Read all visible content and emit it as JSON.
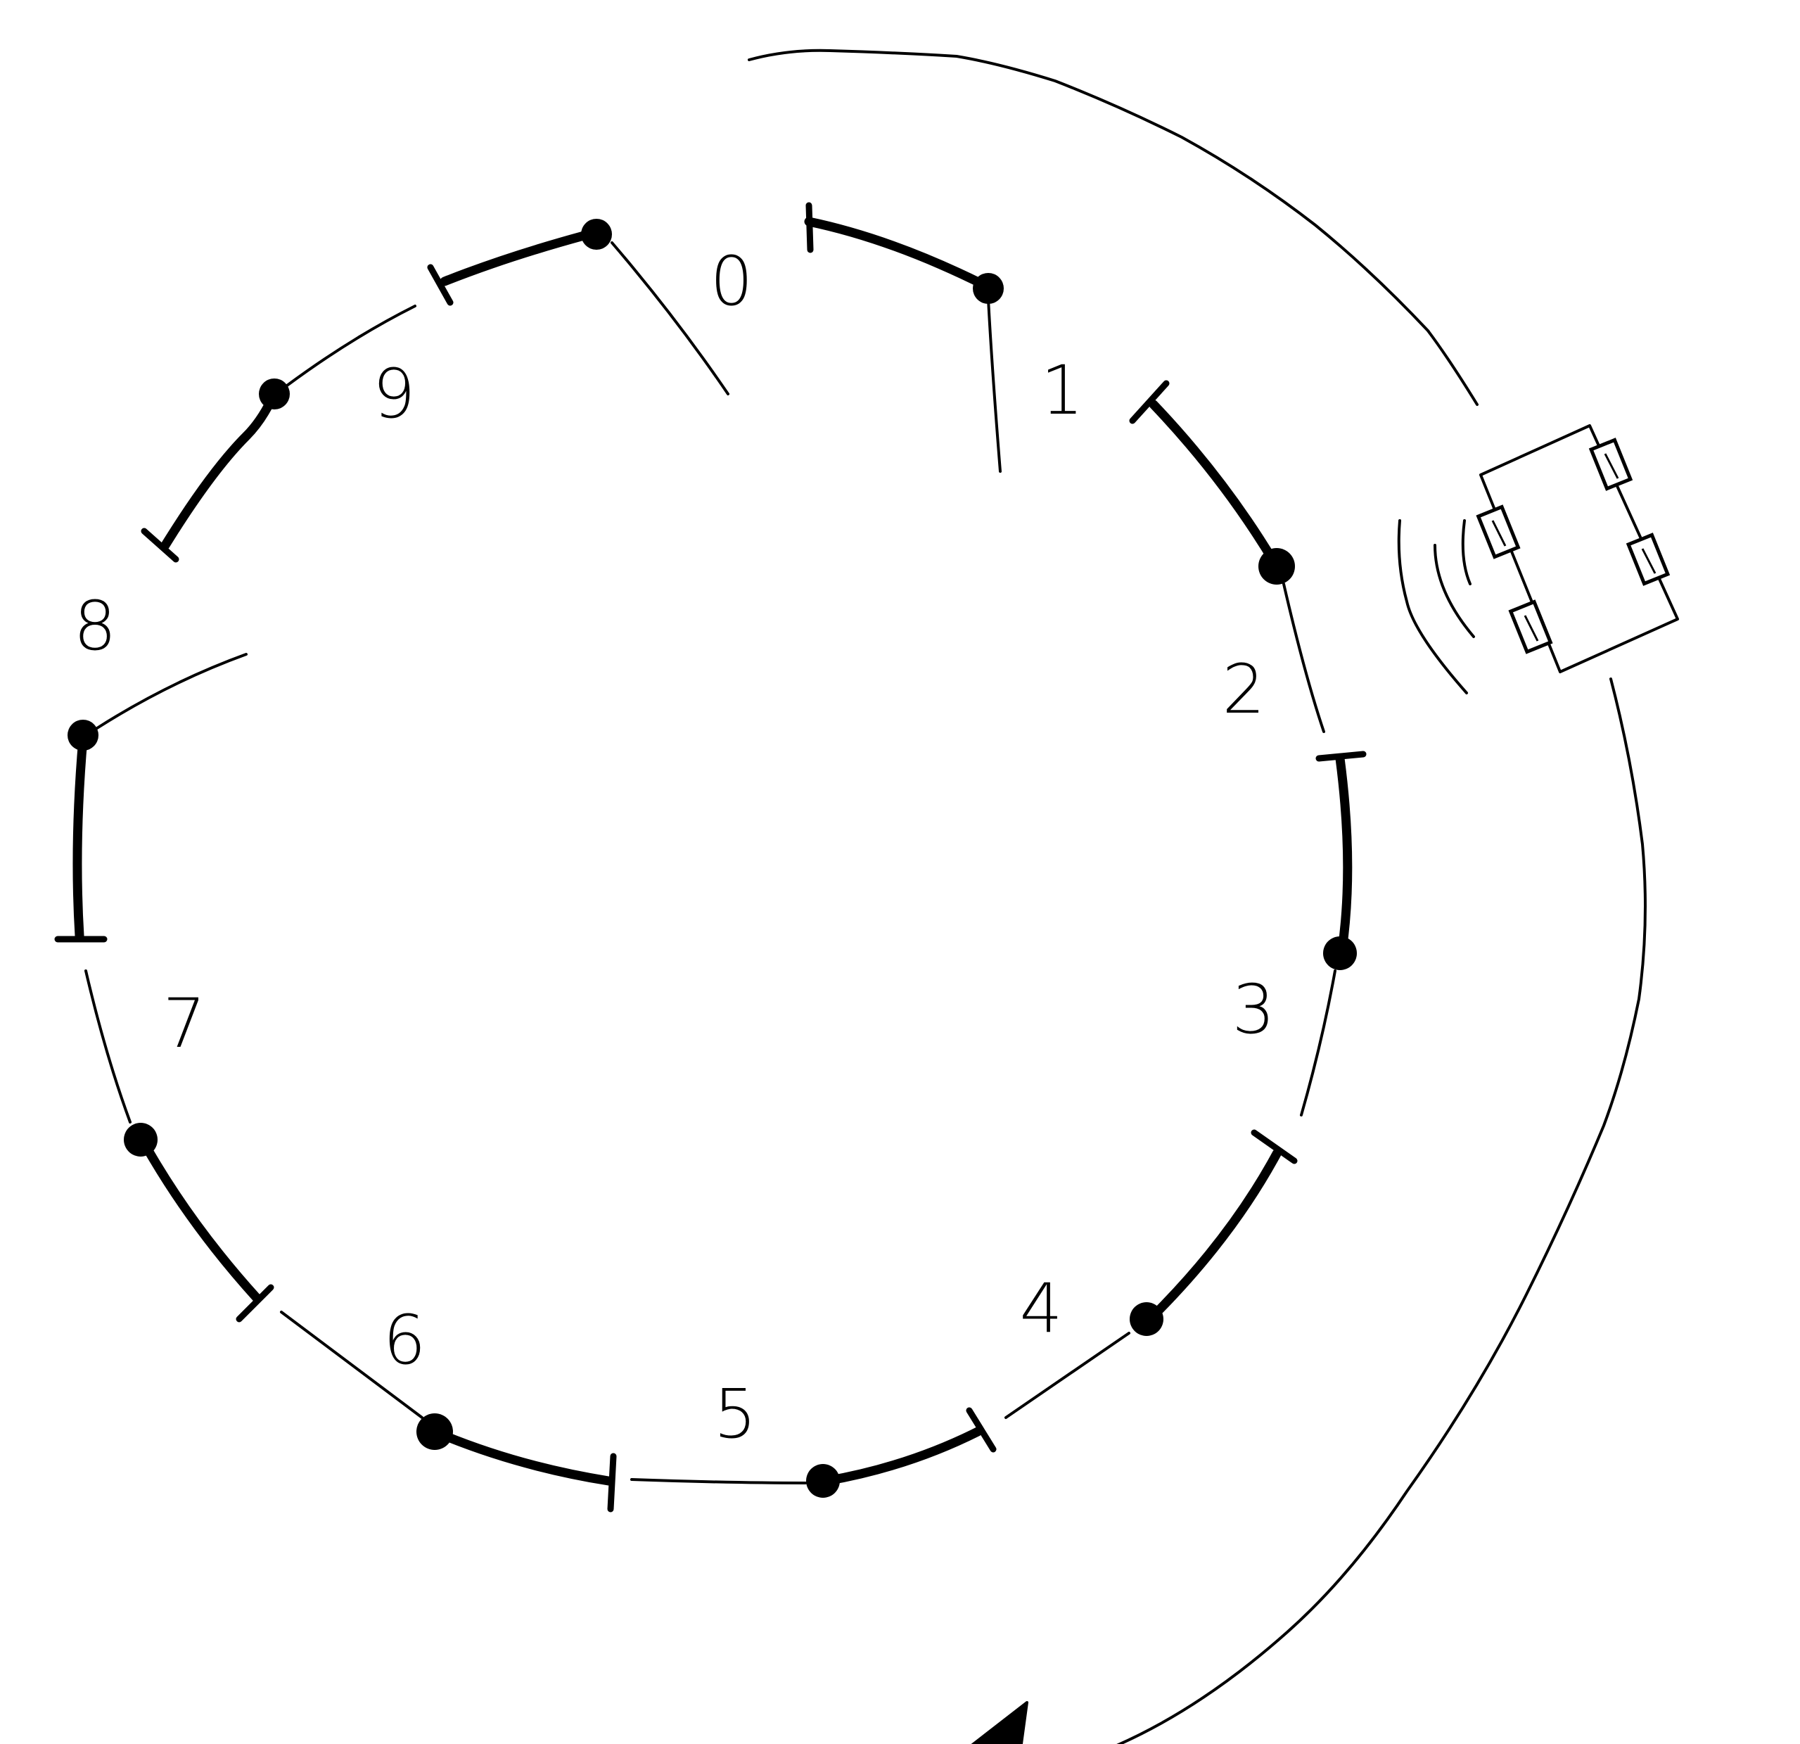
{
  "diagram": {
    "segment_labels": [
      "0",
      "1",
      "2",
      "3",
      "4",
      "5",
      "6",
      "7",
      "8",
      "9"
    ]
  }
}
